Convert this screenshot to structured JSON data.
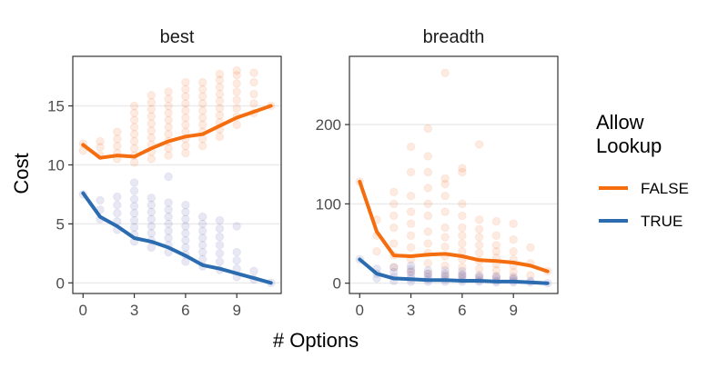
{
  "chart_data": {
    "type": "line",
    "xlabel": "# Options",
    "ylabel": "Cost",
    "legend": {
      "title_lines": [
        "Allow",
        "Lookup"
      ],
      "placement": "right",
      "entries": [
        {
          "label": "FALSE",
          "color": "#f46d0e"
        },
        {
          "label": "TRUE",
          "color": "#2b6cb0"
        }
      ]
    },
    "colors": {
      "FALSE_line": "#f46d0e",
      "TRUE_line": "#2b6cb0",
      "FALSE_points": "#f05a10",
      "TRUE_points": "#4a4aa8"
    },
    "panels": [
      {
        "title": "best",
        "xlim": [
          -0.6,
          11.6
        ],
        "ylim": [
          -0.9,
          19.2
        ],
        "xticks": [
          0,
          3,
          6,
          9
        ],
        "yticks": [
          0,
          5,
          10,
          15
        ],
        "series": [
          {
            "name": "FALSE",
            "x": [
              0,
              1,
              2,
              3,
              4,
              5,
              6,
              7,
              8,
              9,
              10,
              11
            ],
            "values": [
              11.7,
              10.6,
              10.8,
              10.7,
              11.4,
              12.0,
              12.4,
              12.6,
              13.3,
              14.0,
              14.5,
              15.0
            ]
          },
          {
            "name": "TRUE",
            "x": [
              0,
              1,
              2,
              3,
              4,
              5,
              6,
              7,
              8,
              9,
              10,
              11
            ],
            "values": [
              7.6,
              5.6,
              4.8,
              3.8,
              3.5,
              3.0,
              2.3,
              1.5,
              1.2,
              0.8,
              0.4,
              0.0
            ]
          }
        ],
        "points": [
          {
            "group": "FALSE",
            "x": 0,
            "y": [
              11.2,
              11.8
            ]
          },
          {
            "group": "FALSE",
            "x": 1,
            "y": [
              10.8,
              11.5,
              12.0
            ]
          },
          {
            "group": "FALSE",
            "x": 2,
            "y": [
              10.5,
              11.0,
              11.6,
              12.2,
              12.8
            ]
          },
          {
            "group": "FALSE",
            "x": 3,
            "y": [
              10.2,
              10.8,
              11.4,
              12.0,
              12.6,
              13.2,
              13.8,
              14.4,
              15.0
            ]
          },
          {
            "group": "FALSE",
            "x": 4,
            "y": [
              10.5,
              11.1,
              11.7,
              12.3,
              12.9,
              13.5,
              14.1,
              14.7,
              15.3,
              15.9
            ]
          },
          {
            "group": "FALSE",
            "x": 5,
            "y": [
              10.8,
              11.4,
              12.0,
              12.6,
              13.2,
              13.8,
              14.4,
              15.0,
              15.6,
              16.2
            ]
          },
          {
            "group": "FALSE",
            "x": 6,
            "y": [
              11.0,
              11.6,
              12.2,
              12.8,
              13.4,
              14.0,
              14.6,
              15.2,
              15.8,
              16.4,
              17.0
            ]
          },
          {
            "group": "FALSE",
            "x": 7,
            "y": [
              11.6,
              12.2,
              12.8,
              13.4,
              14.0,
              14.6,
              15.2,
              15.8,
              16.4,
              17.0
            ]
          },
          {
            "group": "FALSE",
            "x": 8,
            "y": [
              12.4,
              13.0,
              13.6,
              14.2,
              14.8,
              15.4,
              16.0,
              16.6,
              17.2,
              17.7
            ]
          },
          {
            "group": "FALSE",
            "x": 9,
            "y": [
              13.4,
              14.1,
              14.8,
              15.5,
              16.2,
              16.9,
              17.6,
              18.0
            ]
          },
          {
            "group": "FALSE",
            "x": 10,
            "y": [
              14.4,
              15.2,
              16.0,
              17.0,
              17.8
            ]
          },
          {
            "group": "FALSE",
            "x": 11,
            "y": [
              15.0
            ]
          },
          {
            "group": "TRUE",
            "x": 0,
            "y": [
              7.5
            ]
          },
          {
            "group": "TRUE",
            "x": 1,
            "y": [
              5.4,
              6.2,
              7.0
            ]
          },
          {
            "group": "TRUE",
            "x": 2,
            "y": [
              4.5,
              5.2,
              5.9,
              6.6,
              7.3
            ]
          },
          {
            "group": "TRUE",
            "x": 3,
            "y": [
              3.5,
              4.1,
              4.7,
              5.3,
              5.9,
              6.5,
              7.1,
              7.8,
              8.5
            ]
          },
          {
            "group": "TRUE",
            "x": 4,
            "y": [
              3.0,
              3.6,
              4.2,
              4.8,
              5.4,
              6.0,
              6.6,
              7.2
            ]
          },
          {
            "group": "TRUE",
            "x": 5,
            "y": [
              2.6,
              3.2,
              3.8,
              4.4,
              5.0,
              5.6,
              6.2,
              6.8,
              9.0
            ]
          },
          {
            "group": "TRUE",
            "x": 6,
            "y": [
              1.8,
              2.4,
              3.0,
              3.6,
              4.2,
              4.8,
              5.4,
              6.0,
              6.6
            ]
          },
          {
            "group": "TRUE",
            "x": 7,
            "y": [
              1.4,
              2.0,
              2.6,
              3.2,
              3.8,
              4.4,
              5.0,
              5.6
            ]
          },
          {
            "group": "TRUE",
            "x": 8,
            "y": [
              1.1,
              1.8,
              2.5,
              3.2,
              3.9,
              4.6,
              5.3
            ]
          },
          {
            "group": "TRUE",
            "x": 9,
            "y": [
              0.5,
              1.2,
              1.9,
              2.6,
              4.8
            ]
          },
          {
            "group": "TRUE",
            "x": 10,
            "y": [
              0.3,
              1.0
            ]
          },
          {
            "group": "TRUE",
            "x": 11,
            "y": [
              0.0
            ]
          }
        ]
      },
      {
        "title": "breadth",
        "xlim": [
          -0.6,
          11.6
        ],
        "ylim": [
          -13,
          286
        ],
        "xticks": [
          0,
          3,
          6,
          9
        ],
        "yticks": [
          0,
          100,
          200
        ],
        "series": [
          {
            "name": "FALSE",
            "x": [
              0,
              1,
              2,
              3,
              4,
              5,
              6,
              7,
              8,
              9,
              10,
              11
            ],
            "values": [
              128,
              65,
              35,
              34,
              36,
              37,
              34,
              29,
              28,
              26,
              22,
              15
            ]
          },
          {
            "name": "TRUE",
            "x": [
              0,
              1,
              2,
              3,
              4,
              5,
              6,
              7,
              8,
              9,
              10,
              11
            ],
            "values": [
              30,
              12,
              6,
              5,
              4,
              4,
              3,
              3,
              2,
              2,
              1,
              0
            ]
          }
        ],
        "points": [
          {
            "group": "FALSE",
            "x": 0,
            "y": [
              128
            ]
          },
          {
            "group": "FALSE",
            "x": 1,
            "y": [
              40,
              60,
              80
            ]
          },
          {
            "group": "FALSE",
            "x": 2,
            "y": [
              20,
              35,
              50,
              70,
              85,
              100,
              115
            ]
          },
          {
            "group": "FALSE",
            "x": 3,
            "y": [
              15,
              30,
              45,
              60,
              75,
              90,
              110,
              140,
              172
            ]
          },
          {
            "group": "FALSE",
            "x": 4,
            "y": [
              12,
              25,
              38,
              50,
              65,
              85,
              100,
              120,
              140,
              160,
              195
            ]
          },
          {
            "group": "FALSE",
            "x": 5,
            "y": [
              10,
              22,
              34,
              46,
              58,
              70,
              90,
              110,
              125,
              132,
              265
            ]
          },
          {
            "group": "FALSE",
            "x": 6,
            "y": [
              10,
              20,
              30,
              40,
              50,
              60,
              70,
              85,
              100,
              140,
              145
            ]
          },
          {
            "group": "FALSE",
            "x": 7,
            "y": [
              8,
              18,
              28,
              38,
              48,
              58,
              68,
              80,
              175
            ]
          },
          {
            "group": "FALSE",
            "x": 8,
            "y": [
              8,
              16,
              24,
              32,
              40,
              48,
              60,
              78
            ]
          },
          {
            "group": "FALSE",
            "x": 9,
            "y": [
              6,
              14,
              22,
              30,
              40,
              55,
              75
            ]
          },
          {
            "group": "FALSE",
            "x": 10,
            "y": [
              10,
              25,
              45
            ]
          },
          {
            "group": "FALSE",
            "x": 11,
            "y": [
              15
            ]
          },
          {
            "group": "TRUE",
            "x": 0,
            "y": [
              30
            ]
          },
          {
            "group": "TRUE",
            "x": 1,
            "y": [
              6,
              12,
              18
            ]
          },
          {
            "group": "TRUE",
            "x": 2,
            "y": [
              3,
              8,
              14,
              20
            ]
          },
          {
            "group": "TRUE",
            "x": 3,
            "y": [
              2,
              6,
              10,
              14,
              18,
              22
            ]
          },
          {
            "group": "TRUE",
            "x": 4,
            "y": [
              2,
              5,
              8,
              12,
              16
            ]
          },
          {
            "group": "TRUE",
            "x": 5,
            "y": [
              2,
              5,
              8,
              12,
              16
            ]
          },
          {
            "group": "TRUE",
            "x": 6,
            "y": [
              2,
              5,
              8,
              11,
              15
            ]
          },
          {
            "group": "TRUE",
            "x": 7,
            "y": [
              2,
              4,
              7,
              10
            ]
          },
          {
            "group": "TRUE",
            "x": 8,
            "y": [
              1,
              3,
              6,
              9
            ]
          },
          {
            "group": "TRUE",
            "x": 9,
            "y": [
              1,
              3,
              5,
              8
            ]
          },
          {
            "group": "TRUE",
            "x": 10,
            "y": [
              1,
              3
            ]
          },
          {
            "group": "TRUE",
            "x": 11,
            "y": [
              0
            ]
          }
        ]
      }
    ]
  }
}
